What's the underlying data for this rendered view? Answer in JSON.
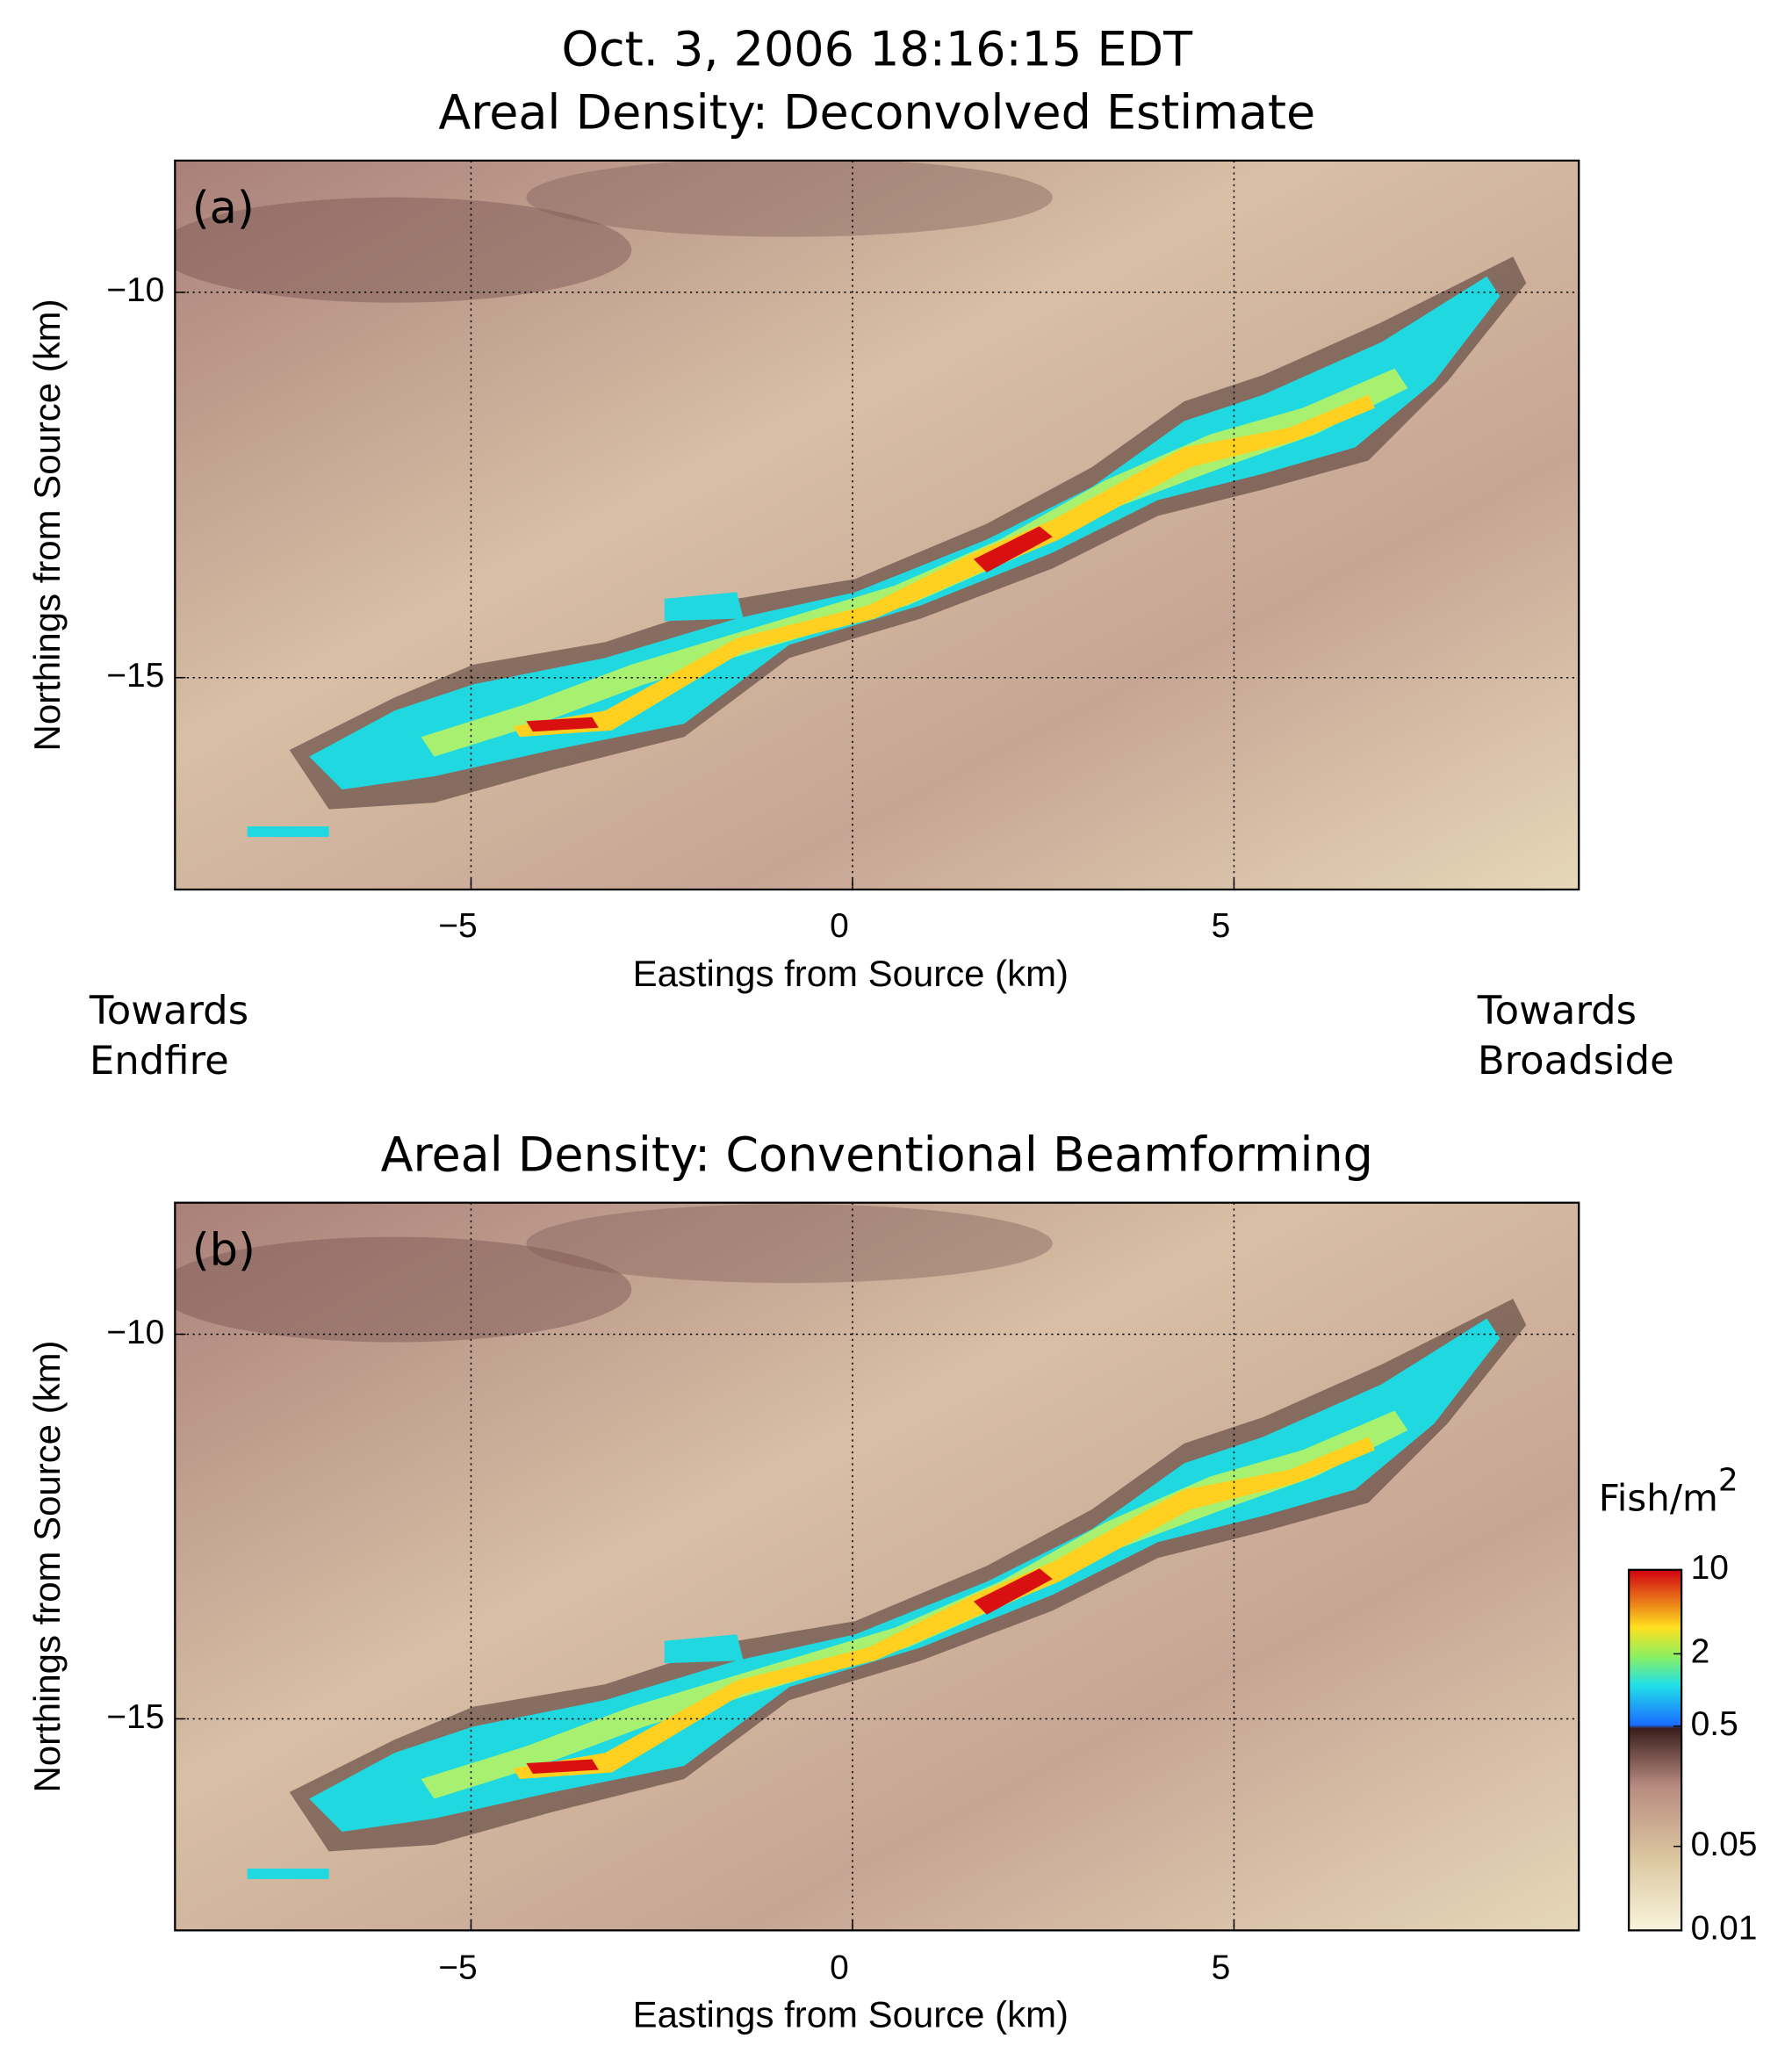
{
  "chart_data": [
    {
      "type": "heatmap",
      "suptitle": "Oct. 3, 2006 18:16:15 EDT",
      "title": "Areal Density: Deconvolved Estimate",
      "panel_label": "(a)",
      "xlabel": "Eastings from Source (km)",
      "ylabel": "Northings from Source (km)",
      "xlim": [
        -8.88,
        9.52
      ],
      "ylim": [
        -17.75,
        -8.29
      ],
      "xticks": [
        {
          "value": -5,
          "label": "−5"
        },
        0,
        5
      ],
      "yticks": [
        {
          "value": -10,
          "label": "−10"
        },
        {
          "value": -15,
          "label": "−15"
        }
      ],
      "grid": true,
      "annotations": [
        [
          "Towards",
          "Endfire"
        ],
        [
          "Towards",
          "Broadside"
        ]
      ]
    },
    {
      "type": "heatmap",
      "title": "Areal Density: Conventional Beamforming",
      "panel_label": "(b)",
      "xlabel": "Eastings from Source (km)",
      "ylabel": "Northings from Source (km)",
      "xlim": [
        -8.88,
        9.52
      ],
      "ylim": [
        -17.75,
        -8.29
      ],
      "xticks": [
        {
          "value": -5,
          "label": "−5"
        },
        0,
        5
      ],
      "yticks": [
        {
          "value": -10,
          "label": "−10"
        },
        {
          "value": -15,
          "label": "−15"
        }
      ],
      "grid": true,
      "colorbar": {
        "label": "Fish/m",
        "label_superscript": "2",
        "log": true,
        "clim": [
          0.01,
          10
        ],
        "ticks": [
          0.01,
          0.05,
          0.5,
          2,
          10
        ]
      }
    }
  ]
}
